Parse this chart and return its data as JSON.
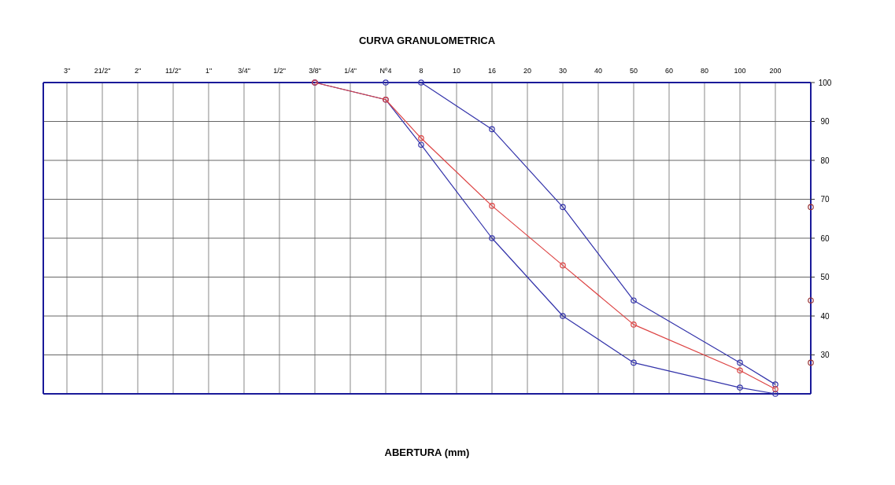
{
  "chart_data": {
    "type": "line",
    "title": "CURVA GRANULOMETRICA",
    "annotations": [
      "ABERTURA (mm)"
    ],
    "categories": [
      "3\"",
      "21/2\"",
      "2\"",
      "11/2\"",
      "1\"",
      "3/4\"",
      "1/2\"",
      "3/8\"",
      "1/4\"",
      "Nº4",
      "8",
      "10",
      "16",
      "20",
      "30",
      "40",
      "50",
      "60",
      "80",
      "100",
      "200",
      null
    ],
    "ylim": [
      20,
      100
    ],
    "yticks": [
      30,
      40,
      50,
      60,
      70,
      80,
      90,
      100
    ],
    "grid": true,
    "marker": "circle",
    "line_style": "solid",
    "series": [
      {
        "color": "#3333aa",
        "x": [
          "3/8\"",
          "Nº4",
          "8",
          "16",
          "30",
          "50",
          "100",
          "200"
        ],
        "values": [
          100,
          100,
          100,
          88,
          68,
          44,
          28,
          22.4
        ]
      },
      {
        "color": "#3333aa",
        "x": [
          "3/8\"",
          "Nº4",
          "8",
          "16",
          "30",
          "50",
          "100",
          "200"
        ],
        "values": [
          100,
          95.6,
          84,
          60,
          40,
          28,
          21.6,
          20
        ]
      },
      {
        "color": "#dd4444",
        "x": [
          "3/8\"",
          "Nº4",
          "8",
          "16",
          "30",
          "50",
          "100",
          "200"
        ],
        "values": [
          100,
          95.6,
          85.7,
          68.3,
          53,
          37.8,
          26,
          21.2
        ]
      },
      {
        "type": "scatter",
        "color": "#993333",
        "values": [
          null,
          null,
          null,
          null,
          null,
          null,
          null,
          null,
          null,
          null,
          null,
          null,
          null,
          null,
          null,
          null,
          null,
          null,
          null,
          null,
          null,
          68
        ]
      },
      {
        "type": "scatter",
        "color": "#993333",
        "values": [
          null,
          null,
          null,
          null,
          null,
          null,
          null,
          null,
          null,
          null,
          null,
          null,
          null,
          null,
          null,
          null,
          null,
          null,
          null,
          null,
          null,
          44
        ]
      },
      {
        "type": "scatter",
        "color": "#993333",
        "values": [
          null,
          null,
          null,
          null,
          null,
          null,
          null,
          null,
          null,
          null,
          null,
          null,
          null,
          null,
          null,
          null,
          null,
          null,
          null,
          null,
          null,
          28
        ]
      }
    ]
  }
}
